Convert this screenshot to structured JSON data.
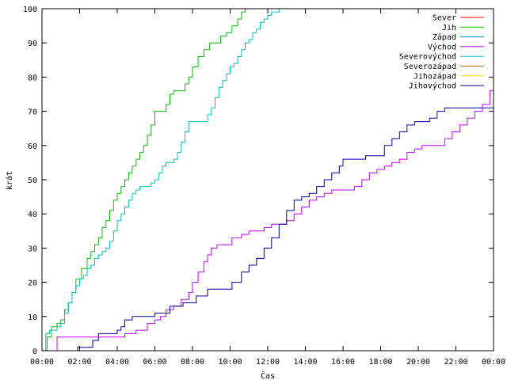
{
  "chart_data": {
    "type": "line",
    "title": "",
    "xlabel": "Čas",
    "ylabel": "krát",
    "xlim": [
      0,
      24
    ],
    "ylim": [
      0,
      100
    ],
    "x_tick_labels": [
      "00:00",
      "02:00",
      "04:00",
      "06:00",
      "08:00",
      "10:00",
      "12:00",
      "14:00",
      "16:00",
      "18:00",
      "20:00",
      "22:00",
      "00:00"
    ],
    "y_ticks": [
      0,
      10,
      20,
      30,
      40,
      50,
      60,
      70,
      80,
      90,
      100
    ],
    "grid": false,
    "legend_position": "top-right",
    "series": [
      {
        "name": "Sever",
        "color": "#ff0000",
        "x": [],
        "y": []
      },
      {
        "name": "Jih",
        "color": "#00c000",
        "x": [
          0.17,
          0.27,
          0.5,
          0.8,
          1.0,
          1.2,
          1.4,
          1.6,
          1.8,
          2.1,
          2.4,
          2.6,
          2.8,
          3.0,
          3.2,
          3.4,
          3.6,
          3.8,
          4.0,
          4.2,
          4.4,
          4.6,
          4.8,
          5.0,
          5.2,
          5.4,
          5.6,
          5.8,
          6.0,
          6.3,
          6.6,
          6.8,
          7.0,
          7.3,
          7.6,
          7.8,
          8.0,
          8.3,
          8.6,
          8.9,
          9.2,
          9.5,
          9.8,
          10.1,
          10.4,
          10.6,
          10.8
        ],
        "y": [
          0,
          4,
          7,
          8,
          9,
          12,
          14,
          17,
          21,
          24,
          27,
          29,
          31,
          33,
          36,
          38,
          41,
          44,
          46,
          48,
          50,
          52,
          54,
          56,
          58,
          60,
          63,
          66,
          70,
          70,
          72,
          75,
          76,
          76,
          78,
          80,
          83,
          86,
          88,
          90,
          90,
          92,
          93,
          95,
          97,
          99,
          100
        ]
      },
      {
        "name": "Západ",
        "color": "#0080ff",
        "x": [],
        "y": []
      },
      {
        "name": "Východ",
        "color": "#c000ff",
        "x": [
          0.7,
          0.8,
          3.8,
          4.4,
          5.0,
          5.6,
          6.0,
          6.3,
          6.6,
          7.0,
          7.4,
          7.8,
          8.0,
          8.3,
          8.6,
          8.8,
          9.0,
          9.3,
          9.8,
          10.1,
          10.6,
          11.0,
          11.5,
          11.8,
          12.2,
          12.6,
          13.0,
          13.4,
          13.8,
          14.2,
          14.6,
          15.0,
          15.4,
          16.0,
          16.6,
          17.0,
          17.4,
          17.8,
          18.2,
          18.6,
          19.0,
          19.4,
          19.8,
          20.2,
          21.0,
          21.4,
          21.8,
          22.2,
          22.6,
          23.0,
          23.4,
          23.8,
          24.0
        ],
        "y": [
          0,
          4,
          4,
          5,
          6,
          8,
          9,
          10,
          12,
          13,
          15,
          17,
          20,
          23,
          26,
          28,
          30,
          31,
          31,
          33,
          34,
          35,
          35,
          36,
          37,
          37,
          38,
          40,
          42,
          44,
          45,
          46,
          47,
          47,
          48,
          50,
          52,
          53,
          54,
          55,
          56,
          58,
          59,
          60,
          60,
          62,
          64,
          66,
          68,
          70,
          72,
          76,
          80
        ]
      },
      {
        "name": "Severovýchod",
        "color": "#00c0c0",
        "x": [
          0.0,
          0.2,
          0.4,
          0.6,
          0.8,
          1.0,
          1.2,
          1.4,
          1.6,
          1.8,
          2.0,
          2.2,
          2.4,
          2.6,
          2.8,
          3.0,
          3.2,
          3.4,
          3.6,
          3.8,
          4.0,
          4.2,
          4.4,
          4.6,
          4.8,
          5.0,
          5.2,
          5.4,
          5.6,
          5.8,
          6.0,
          6.2,
          6.4,
          6.6,
          6.8,
          7.0,
          7.2,
          7.4,
          7.6,
          7.8,
          8.2,
          8.6,
          8.8,
          9.0,
          9.2,
          9.4,
          9.6,
          9.8,
          10.0,
          10.2,
          10.4,
          10.6,
          10.8,
          11.0,
          11.2,
          11.4,
          11.6,
          11.8,
          12.0,
          12.2,
          12.4,
          12.6,
          12.8
        ],
        "y": [
          0,
          5,
          6,
          6,
          7,
          8,
          11,
          14,
          17,
          19,
          21,
          22,
          24,
          25,
          27,
          28,
          29,
          30,
          32,
          35,
          38,
          40,
          42,
          44,
          46,
          47,
          48,
          48,
          48,
          49,
          50,
          52,
          54,
          55,
          55,
          56,
          58,
          61,
          64,
          67,
          67,
          67,
          69,
          71,
          74,
          77,
          79,
          81,
          83,
          84,
          86,
          88,
          90,
          91,
          93,
          94,
          96,
          97,
          98,
          99,
          99,
          100,
          100
        ]
      },
      {
        "name": "Severozápad",
        "color": "#c06000",
        "x": [],
        "y": []
      },
      {
        "name": "Jihozápad",
        "color": "#ffd700",
        "x": [],
        "y": []
      },
      {
        "name": "Jihovýchod",
        "color": "#0000a0",
        "x": [
          1.5,
          1.9,
          2.3,
          2.7,
          3.0,
          3.5,
          4.0,
          4.2,
          4.4,
          4.8,
          5.3,
          6.0,
          6.8,
          7.5,
          8.2,
          8.8,
          9.6,
          10.1,
          10.6,
          11.0,
          11.4,
          11.8,
          12.2,
          12.6,
          13.0,
          13.4,
          13.8,
          14.2,
          14.6,
          15.0,
          15.4,
          15.8,
          16.0,
          16.6,
          17.2,
          17.8,
          18.2,
          18.6,
          19.0,
          19.4,
          19.8,
          20.2,
          20.6,
          21.0,
          21.4,
          21.8,
          22.2,
          22.6,
          23.0,
          24.0
        ],
        "y": [
          0,
          1,
          1,
          3,
          5,
          5,
          6,
          7,
          9,
          10,
          10,
          11,
          13,
          14,
          16,
          18,
          18,
          20,
          23,
          25,
          27,
          30,
          33,
          37,
          41,
          44,
          45,
          46,
          48,
          50,
          52,
          54,
          56,
          56,
          57,
          57,
          60,
          62,
          64,
          66,
          67,
          67,
          68,
          70,
          71,
          71,
          71,
          71,
          71,
          71
        ]
      }
    ]
  }
}
